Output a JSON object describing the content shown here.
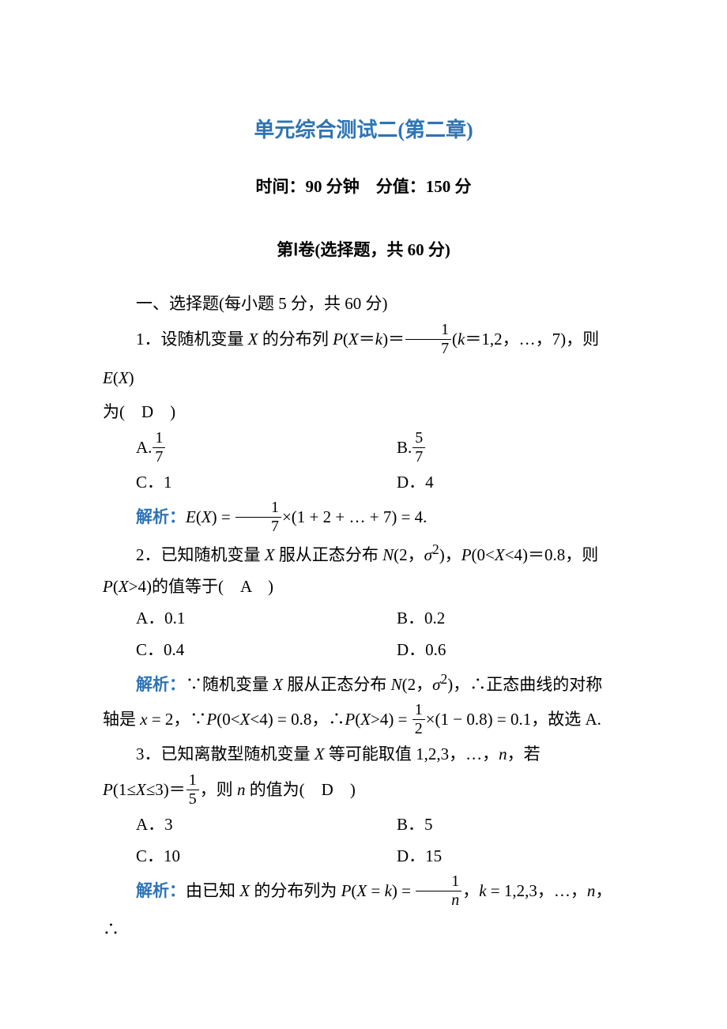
{
  "colors": {
    "title": "#2e74b5",
    "solution_label": "#2e74b5",
    "text": "#000000",
    "background": "#ffffff"
  },
  "typography": {
    "body_fontsize_pt": 16,
    "title_fontsize_pt": 20,
    "font_family": "SimSun / Songti (serif)"
  },
  "title": "单元综合测试二(第二章)",
  "subtitle_prefix": "时间：",
  "subtitle_time": "90 分钟",
  "subtitle_sep": "　分值：",
  "subtitle_score": "150 分",
  "section_header": "第Ⅰ卷(选择题，共 60 分)",
  "section_intro": "一、选择题(每小题 5 分，共 60 分)",
  "q1": {
    "prefix": "1．设随机变量 ",
    "var": "X",
    "mid1": " 的分布列 ",
    "Pexpr_a": "P",
    "Pexpr_b": "(",
    "Pexpr_c": "X",
    "Pexpr_d": "＝",
    "Pexpr_e": "k",
    "Pexpr_f": ")＝",
    "frac_num": "1",
    "frac_den": "7",
    "after_frac": "(",
    "kvar": "k",
    "krange": "＝1,2，…，7)，则 ",
    "Evar_a": "E",
    "Evar_b": "(",
    "Evar_c": "X",
    "Evar_d": ")",
    "line2_a": "为(　D　)",
    "optA_label": "A.",
    "optA_num": "1",
    "optA_den": "7",
    "optB_label": "B.",
    "optB_num": "5",
    "optB_den": "7",
    "optC": "C．1",
    "optD": "D．4",
    "sol_label": "解析：",
    "sol_a": "E",
    "sol_b": "(",
    "sol_c": "X",
    "sol_d": ") = ",
    "sol_num": "1",
    "sol_den": "7",
    "sol_e": "×(1 + 2 + … + 7) = 4."
  },
  "q2": {
    "prefix": "2．已知随机变量 ",
    "var": "X",
    "mid1": " 服从正态分布 ",
    "N_a": "N",
    "N_b": "(2，",
    "sigma": "σ",
    "sq": "2",
    "N_c": ")，",
    "P1_a": "P",
    "P1_b": "(0<",
    "P1_c": "X",
    "P1_d": "<4)＝0.8，则",
    "line2_a": "P",
    "line2_b": "(",
    "line2_c": "X",
    "line2_d": ">4)的值等于(　A　)",
    "optA": "A．0.1",
    "optB": "B．0.2",
    "optC": "C．0.4",
    "optD": "D．0.6",
    "sol_label": "解析：",
    "sol_a": "∵随机变量 ",
    "sol_b": "X",
    "sol_c": " 服从正态分布 ",
    "sol_d": "N",
    "sol_e": "(2，",
    "sol_f": "σ",
    "sol_g": "2",
    "sol_h": ")，∴正态曲线的对称",
    "sol2_a": "轴是 ",
    "sol2_b": "x",
    "sol2_c": " = 2，∵",
    "sol2_d": "P",
    "sol2_e": "(0<",
    "sol2_f": "X",
    "sol2_g": "<4) = 0.8，∴",
    "sol2_h": "P",
    "sol2_i": "(",
    "sol2_j": "X",
    "sol2_k": ">4) = ",
    "sol2_num": "1",
    "sol2_den": "2",
    "sol2_l": "×(1 − 0.8) = 0.1，故选 A."
  },
  "q3": {
    "prefix": "3．已知离散型随机变量 ",
    "var": "X",
    "mid1": " 等可能取值 1,2,3，…，",
    "nvar": "n",
    "mid2": "，若",
    "line2_a": "P",
    "line2_b": "(1≤",
    "line2_c": "X",
    "line2_d": "≤3)＝",
    "frac_num": "1",
    "frac_den": "5",
    "line2_e": "，则 ",
    "line2_f": "n",
    "line2_g": " 的值为(　D　)",
    "optA": "A．3",
    "optB": "B．5",
    "optC": "C．10",
    "optD": "D．15",
    "sol_label": "解析：",
    "sol_a": "由已知 ",
    "sol_b": "X",
    "sol_c": " 的分布列为 ",
    "sol_d": "P",
    "sol_e": "(",
    "sol_f": "X",
    "sol_g": " = ",
    "sol_h": "k",
    "sol_i": ") = ",
    "sol_num": "1",
    "sol_den_var": "n",
    "sol_j": "，",
    "sol_k": "k",
    "sol_l": " = 1,2,3，…，",
    "sol_m": "n",
    "sol_n": "，∴"
  }
}
